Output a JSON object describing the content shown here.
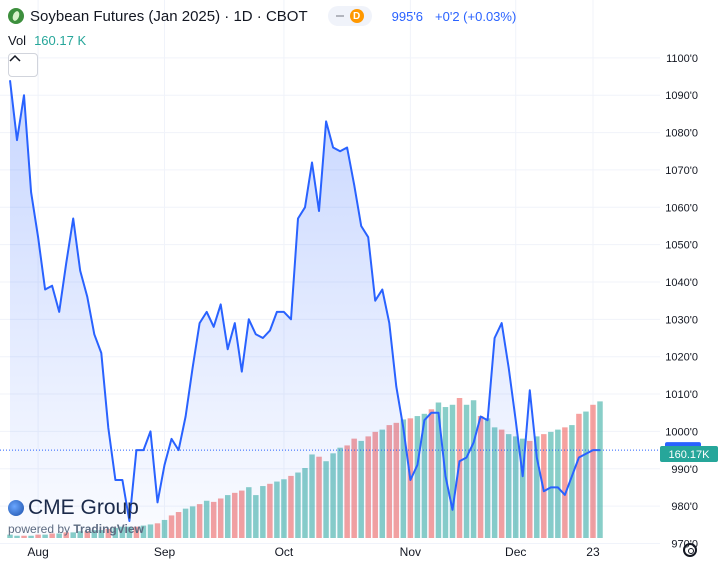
{
  "header": {
    "title": "Soybean Futures (Jan 2025) · 1D · CBOT",
    "badge": "D",
    "price": "995'6",
    "change": "+0'2 (+0.03%)"
  },
  "volume": {
    "label": "Vol",
    "value": "160.17 K"
  },
  "watermark": {
    "brand": "CME Group",
    "powered": "powered by",
    "tv": "TradingView"
  },
  "price_label": "995'6",
  "volume_label": "160.17K",
  "colors": {
    "line": "#2962ff",
    "vol_up": "#26a69a",
    "vol_down": "#ef5350",
    "price_tag": "#2962ff",
    "vol_tag": "#26a69a"
  },
  "icons": {
    "collapse": "chevron-up-icon",
    "settings": "gear-icon",
    "symbol": "soybean-icon"
  },
  "chart_data": {
    "type": "area",
    "y_ticks": [
      "1100'0",
      "1090'0",
      "1080'0",
      "1070'0",
      "1060'0",
      "1050'0",
      "1040'0",
      "1030'0",
      "1020'0",
      "1010'0",
      "1000'0",
      "990'0",
      "980'0",
      "970'0"
    ],
    "y_tick_values": [
      1100,
      1090,
      1080,
      1070,
      1060,
      1050,
      1040,
      1030,
      1020,
      1010,
      1000,
      990,
      980,
      970
    ],
    "ylim": [
      964.5,
      1108
    ],
    "x_ticks": [
      "Aug",
      "Sep",
      "Oct",
      "Nov",
      "Dec",
      "23"
    ],
    "x_tick_index": [
      4,
      22,
      39,
      57,
      72,
      83
    ],
    "n": 85,
    "price": [
      1094,
      1078,
      1090,
      1064,
      1052,
      1038,
      1039,
      1032,
      1045,
      1057,
      1043,
      1036,
      1026,
      1021,
      1001,
      987,
      987,
      976,
      995,
      995,
      1000,
      981,
      991,
      998,
      995,
      1004,
      1017,
      1029,
      1032,
      1028,
      1034,
      1022,
      1029,
      1016,
      1030,
      1026,
      1025,
      1027,
      1032,
      1032,
      1030,
      1057,
      1060,
      1072,
      1059,
      1083,
      1076,
      1075,
      1076,
      1066,
      1055,
      1052,
      1035,
      1038,
      1029,
      1012,
      1001,
      987,
      991,
      1003,
      1005,
      1005,
      988,
      979,
      992,
      993,
      997,
      1004,
      1003,
      1025,
      1029,
      1017,
      1003,
      988,
      1011,
      993,
      984,
      985,
      985,
      983,
      988,
      993,
      994,
      995,
      995
    ],
    "volume": [
      3,
      2,
      2,
      2,
      3,
      3,
      4,
      4,
      5,
      5,
      6,
      6,
      7,
      7,
      8,
      9,
      10,
      10,
      10,
      11,
      12,
      13,
      16,
      20,
      23,
      26,
      28,
      30,
      33,
      32,
      35,
      38,
      40,
      42,
      45,
      38,
      46,
      48,
      50,
      52,
      55,
      58,
      62,
      74,
      72,
      68,
      75,
      80,
      82,
      88,
      86,
      90,
      94,
      96,
      100,
      102,
      105,
      106,
      108,
      110,
      114,
      120,
      116,
      118,
      124,
      118,
      122,
      108,
      106,
      98,
      96,
      92,
      90,
      88,
      86,
      90,
      92,
      94,
      96,
      98,
      100,
      110,
      112,
      118,
      121
    ],
    "volume_up": [
      1,
      1,
      0,
      1,
      0,
      1,
      0,
      1,
      0,
      1,
      1,
      0,
      1,
      1,
      0,
      1,
      1,
      1,
      0,
      1,
      1,
      0,
      1,
      0,
      0,
      1,
      1,
      0,
      1,
      0,
      0,
      1,
      0,
      0,
      1,
      1,
      1,
      0,
      1,
      1,
      0,
      1,
      1,
      1,
      0,
      1,
      1,
      1,
      0,
      0,
      1,
      0,
      0,
      1,
      0,
      0,
      1,
      0,
      1,
      1,
      0,
      1,
      1,
      1,
      0,
      1,
      1,
      0,
      1,
      1,
      0,
      1,
      1,
      1,
      0,
      1,
      0,
      1,
      1,
      0,
      1,
      0,
      1,
      0,
      1
    ]
  }
}
